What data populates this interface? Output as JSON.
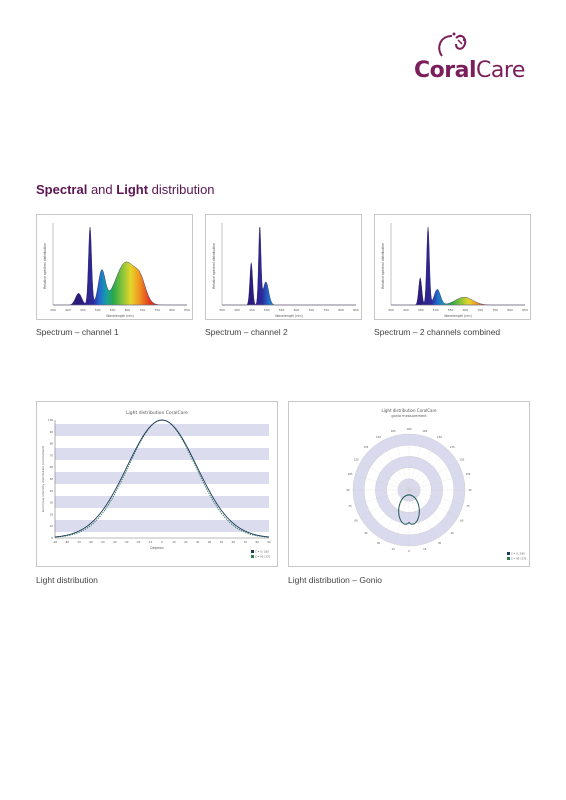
{
  "brand": {
    "part1": "Coral",
    "part2": "Care"
  },
  "heading": {
    "bold1": "Spectral",
    "and": "and",
    "bold2": "Light",
    "rest": "distribution"
  },
  "spectra": {
    "ylabel": "Relative spectral distribution",
    "xlabel": "Wavelength (nm)",
    "ticks": [
      "300",
      "400",
      "450",
      "500",
      "550",
      "600",
      "700",
      "750",
      "800",
      "850"
    ],
    "captions": [
      "Spectrum – channel 1",
      "Spectrum – channel 2",
      "Spectrum – 2 channels combined"
    ]
  },
  "light_distribution": {
    "title": "Light distribution CoralCare",
    "xlabel": "Degrees",
    "ylabel": "Luminous intensity distribution (normalised)",
    "legend": [
      "C = 0 / 180",
      "C = 90 / 270"
    ],
    "caption": "Light distribution"
  },
  "gonio": {
    "title": "Light distribution CoralCare",
    "subtitle": "gonio measurement",
    "legend": [
      "C = 0 / 180",
      "C = 90 / 270"
    ],
    "caption": "Light distribution – Gonio"
  },
  "colors": {
    "brand": "#7a1f5c",
    "heading": "#5b1553",
    "band": "#d9d9ee",
    "curve_a": "#2e7d55",
    "curve_b": "#1f3a5f"
  }
}
